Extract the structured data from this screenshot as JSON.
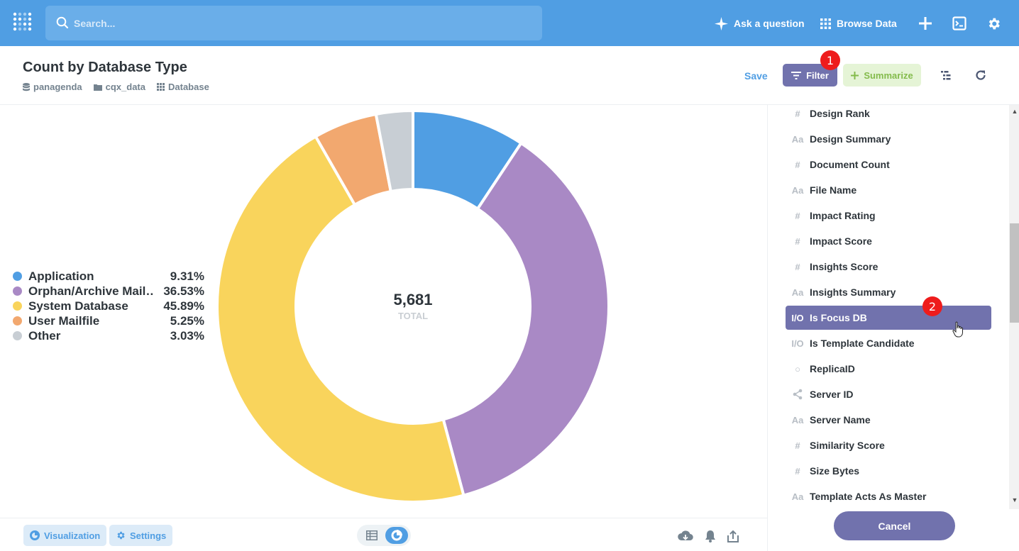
{
  "topbar": {
    "search_placeholder": "Search...",
    "ask_label": "Ask a question",
    "browse_label": "Browse Data"
  },
  "header": {
    "title": "Count by Database Type",
    "breadcrumbs": [
      "panagenda",
      "cqx_data",
      "Database"
    ],
    "save_label": "Save",
    "filter_label": "Filter",
    "summarize_label": "Summarize",
    "filter_badge": "1"
  },
  "chart_data": {
    "type": "pie",
    "categories": [
      "Application",
      "Orphan/Archive Mail…",
      "System Database",
      "User Mailfile",
      "Other"
    ],
    "values": [
      9.31,
      36.53,
      45.89,
      5.25,
      3.03
    ],
    "value_labels": [
      "9.31%",
      "36.53%",
      "45.89%",
      "5.25%",
      "3.03%"
    ],
    "colors": [
      "#509ee3",
      "#a989c5",
      "#f9d45c",
      "#f2a86f",
      "#c8ced4"
    ],
    "total_value": "5,681",
    "total_label": "TOTAL",
    "legend_position": "left"
  },
  "footer": {
    "visualization_label": "Visualization",
    "settings_label": "Settings"
  },
  "sidebar": {
    "fields": [
      {
        "icon": "#",
        "label": "Design Rank"
      },
      {
        "icon": "Aa",
        "label": "Design Summary"
      },
      {
        "icon": "#",
        "label": "Document Count"
      },
      {
        "icon": "Aa",
        "label": "File Name"
      },
      {
        "icon": "#",
        "label": "Impact Rating"
      },
      {
        "icon": "#",
        "label": "Impact Score"
      },
      {
        "icon": "#",
        "label": "Insights Score"
      },
      {
        "icon": "Aa",
        "label": "Insights Summary"
      },
      {
        "icon": "I/O",
        "label": "Is Focus DB"
      },
      {
        "icon": "I/O",
        "label": "Is Template Candidate"
      },
      {
        "icon": "○",
        "label": "ReplicaID"
      },
      {
        "icon": "share",
        "label": "Server ID"
      },
      {
        "icon": "Aa",
        "label": "Server Name"
      },
      {
        "icon": "#",
        "label": "Similarity Score"
      },
      {
        "icon": "#",
        "label": "Size Bytes"
      },
      {
        "icon": "Aa",
        "label": "Template Acts As Master"
      }
    ],
    "selected_badge": "2",
    "cancel_label": "Cancel"
  }
}
